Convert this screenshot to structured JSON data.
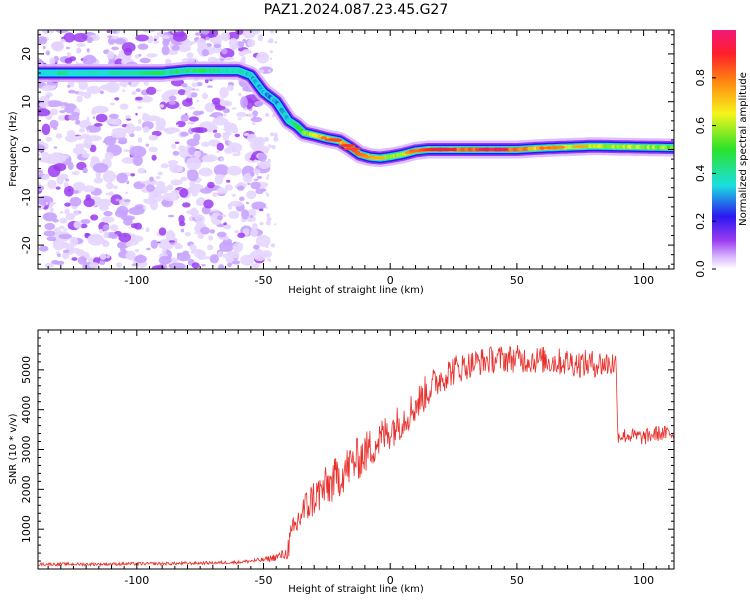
{
  "figure": {
    "title": "PAZ1.2024.087.23.45.G27"
  },
  "colors": {
    "snr_line": "#e8302c",
    "axes": "#000000",
    "noise": "#9b3cf0",
    "colormap": [
      "#ffffff",
      "#d9b8ff",
      "#9b3cf0",
      "#2a18f0",
      "#1ae0e0",
      "#2ae22a",
      "#f5f51c",
      "#ff8a10",
      "#ff1f2a",
      "#f2187a"
    ]
  },
  "chart_data": [
    {
      "type": "heatmap",
      "title": "",
      "xlabel": "Height of straight line (km)",
      "ylabel": "Frequency (Hz)",
      "xlim": [
        -139,
        112
      ],
      "ylim": [
        -25,
        25
      ],
      "x_ticks": [
        -100,
        -50,
        0,
        50,
        100
      ],
      "y_ticks": [
        20,
        10,
        0,
        -10,
        -20
      ],
      "grid": false,
      "noise_region": {
        "x_from": -139,
        "x_to": -49,
        "level": 0.15
      },
      "ridge": {
        "description_units": "height km -> frequency Hz",
        "x": [
          -139,
          -90,
          -80,
          -70,
          -60,
          -55,
          -50,
          -45,
          -40,
          -37,
          -34,
          -30,
          -25,
          -20,
          -16,
          -12,
          -8,
          -4,
          0,
          5,
          10,
          15,
          20,
          30,
          40,
          50,
          60,
          70,
          80,
          90,
          100,
          112
        ],
        "y": [
          16,
          16,
          16.5,
          16.5,
          16.5,
          15.5,
          12,
          10,
          6,
          5,
          3.5,
          3,
          2.3,
          1.8,
          0.5,
          -1,
          -1.6,
          -1.8,
          -1.5,
          -1,
          -0.3,
          0,
          0,
          0,
          0,
          0,
          0.3,
          0.5,
          0.7,
          0.6,
          0.5,
          0.4
        ],
        "amplitude": [
          0.4,
          0.42,
          0.45,
          0.45,
          0.4,
          0.35,
          0.3,
          0.3,
          0.35,
          0.45,
          0.55,
          0.65,
          0.7,
          0.75,
          0.75,
          0.7,
          0.65,
          0.6,
          0.55,
          0.6,
          0.7,
          0.75,
          0.8,
          0.8,
          0.85,
          0.8,
          0.7,
          0.65,
          0.6,
          0.6,
          0.6,
          0.55
        ]
      },
      "colorbar": {
        "label": "Normalized spectral amplitude",
        "ticks": [
          0.0,
          0.2,
          0.4,
          0.6,
          0.8
        ],
        "range": [
          0,
          1
        ]
      }
    },
    {
      "type": "line",
      "title": "",
      "xlabel": "Height of straight line (km)",
      "ylabel": "SNR (10 * v/v)",
      "xlim": [
        -139,
        112
      ],
      "ylim": [
        0,
        6000
      ],
      "x_ticks": [
        -100,
        -50,
        0,
        50,
        100
      ],
      "y_ticks": [
        1000,
        2000,
        3000,
        4000,
        5000
      ],
      "grid": false,
      "series": [
        {
          "x": [
            -139,
            -120,
            -100,
            -80,
            -60,
            -50,
            -45,
            -41,
            -40,
            -39,
            -35,
            -30,
            -25,
            -20,
            -15,
            -10,
            -5,
            0,
            5,
            10,
            15,
            20,
            25,
            30,
            35,
            40,
            45,
            50,
            55,
            60,
            65,
            70,
            75,
            80,
            85,
            89,
            90,
            95,
            100,
            105,
            112
          ],
          "values": [
            120,
            120,
            130,
            140,
            170,
            230,
            300,
            380,
            600,
            800,
            1400,
            1800,
            2050,
            2350,
            2650,
            2900,
            3200,
            3500,
            3750,
            4100,
            4500,
            4800,
            5000,
            5100,
            5200,
            5250,
            5280,
            5280,
            5250,
            5250,
            5200,
            5200,
            5150,
            5150,
            5150,
            5150,
            3350,
            3350,
            3300,
            3400,
            3400
          ],
          "noise_amplitude": [
            40,
            40,
            40,
            40,
            40,
            60,
            100,
            150,
            350,
            400,
            450,
            500,
            550,
            550,
            550,
            550,
            500,
            500,
            450,
            450,
            450,
            400,
            400,
            350,
            350,
            350,
            350,
            350,
            350,
            350,
            350,
            350,
            350,
            350,
            350,
            350,
            200,
            200,
            200,
            200,
            200
          ]
        }
      ]
    }
  ]
}
